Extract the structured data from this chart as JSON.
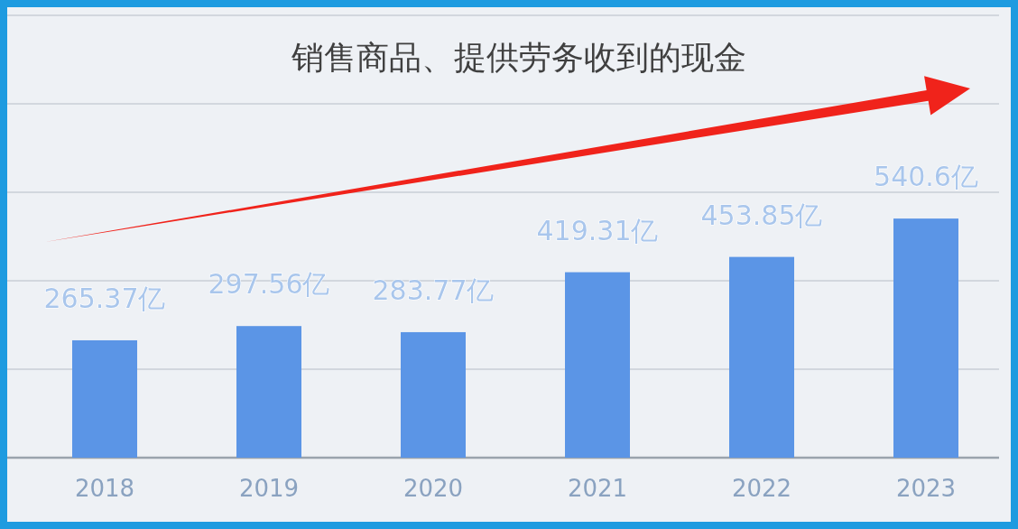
{
  "chart_data": {
    "type": "bar",
    "title": "销售商品、提供劳务收到的现金",
    "categories": [
      "2018",
      "2019",
      "2020",
      "2021",
      "2022",
      "2023"
    ],
    "values": [
      265.37,
      297.56,
      283.77,
      419.31,
      453.85,
      540.6
    ],
    "value_labels": [
      "265.37亿",
      "297.56亿",
      "283.77亿",
      "419.31亿",
      "453.85亿",
      "540.6亿"
    ],
    "color": "#5b95e6",
    "ylim": [
      0,
      1000
    ],
    "yticks": [
      {
        "value": 0,
        "label": null
      },
      {
        "value": 200,
        "label": null
      },
      {
        "value": 400,
        "label": null
      },
      {
        "value": 600,
        "label": null
      },
      {
        "value": 800,
        "label": null
      },
      {
        "value": 1000,
        "label": null
      }
    ],
    "grid": "y"
  }
}
